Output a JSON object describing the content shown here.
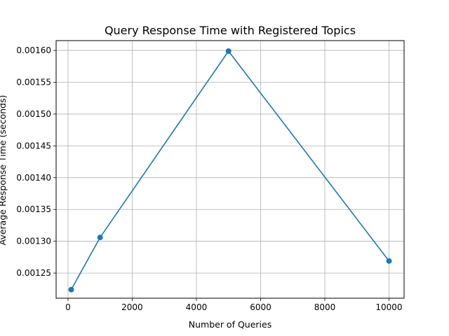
{
  "chart_data": {
    "type": "line",
    "title": "Query Response Time with Registered Topics",
    "xlabel": "Number of Queries",
    "ylabel": "Average Response Time (seconds)",
    "x": [
      100,
      1000,
      5000,
      10000
    ],
    "series": [
      {
        "name": "",
        "values": [
          0.001224,
          0.001306,
          0.001599,
          0.001269
        ]
      }
    ],
    "xlim": [
      -370,
      10470
    ],
    "ylim": [
      0.0012105,
      0.0016155
    ],
    "xticks": [
      0,
      2000,
      4000,
      6000,
      8000,
      10000
    ],
    "xtick_labels": [
      "0",
      "2000",
      "4000",
      "6000",
      "8000",
      "10000"
    ],
    "yticks": [
      0.00125,
      0.0013,
      0.00135,
      0.0014,
      0.00145,
      0.0015,
      0.00155,
      0.0016
    ],
    "ytick_labels": [
      "0.00125",
      "0.00130",
      "0.00135",
      "0.00140",
      "0.00145",
      "0.00150",
      "0.00155",
      "0.00160"
    ],
    "grid": true,
    "line_color": "#1f77b4",
    "marker": "circle"
  }
}
